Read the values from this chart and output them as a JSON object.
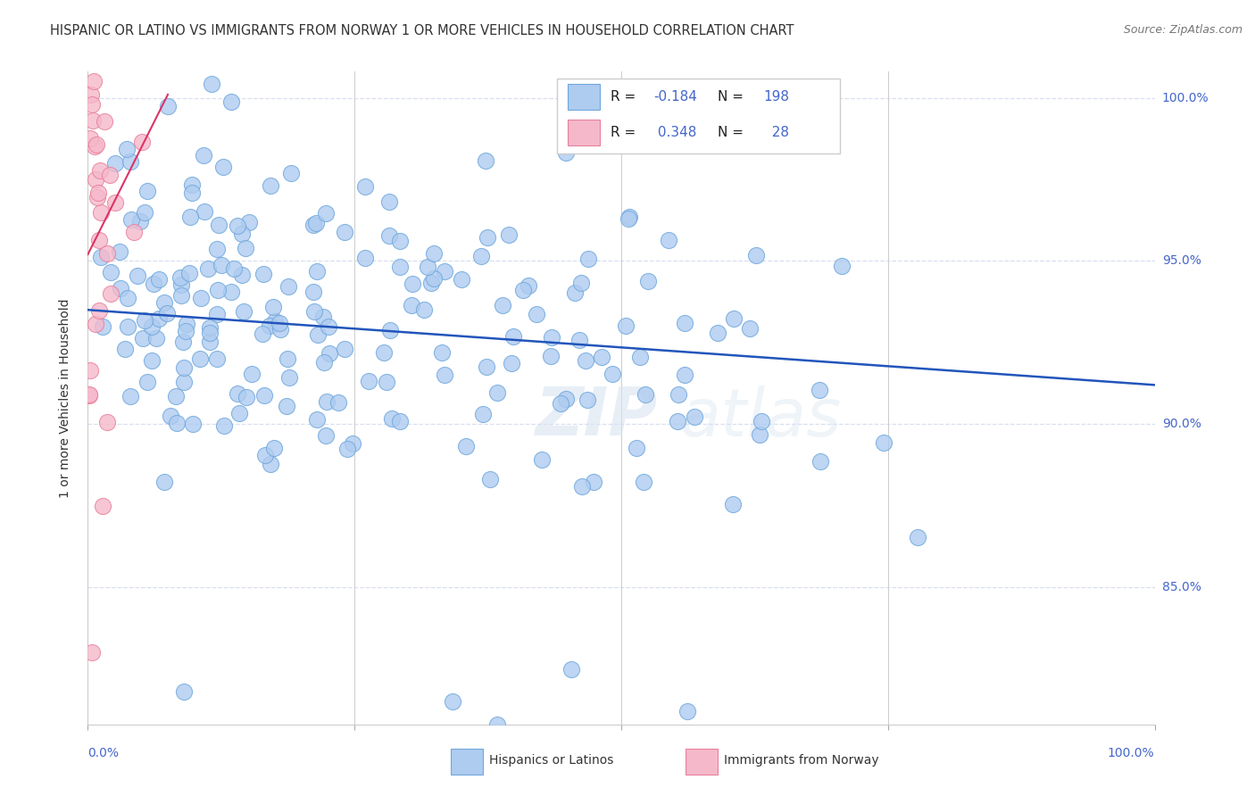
{
  "title": "HISPANIC OR LATINO VS IMMIGRANTS FROM NORWAY 1 OR MORE VEHICLES IN HOUSEHOLD CORRELATION CHART",
  "source": "Source: ZipAtlas.com",
  "ylabel": "1 or more Vehicles in Household",
  "ytick_labels": [
    "85.0%",
    "90.0%",
    "95.0%",
    "100.0%"
  ],
  "ytick_values": [
    0.85,
    0.9,
    0.95,
    1.0
  ],
  "blue_color": "#aecbf0",
  "pink_color": "#f5b8cb",
  "blue_edge_color": "#6fa8dc",
  "pink_edge_color": "#e8809a",
  "blue_line_color": "#2255bb",
  "pink_line_color": "#dd3366",
  "axis_color": "#4466cc",
  "grid_color": "#d8dff0",
  "watermark": "ZIPAtlas",
  "blue_r": "-0.184",
  "blue_n": "198",
  "pink_r": "0.348",
  "pink_n": "28",
  "blue_trend_x": [
    0.0,
    1.0
  ],
  "blue_trend_y": [
    0.935,
    0.912
  ],
  "pink_trend_x": [
    0.0,
    0.075
  ],
  "pink_trend_y": [
    0.952,
    1.001
  ],
  "xmin": 0.0,
  "xmax": 1.0,
  "ymin": 0.808,
  "ymax": 1.008
}
